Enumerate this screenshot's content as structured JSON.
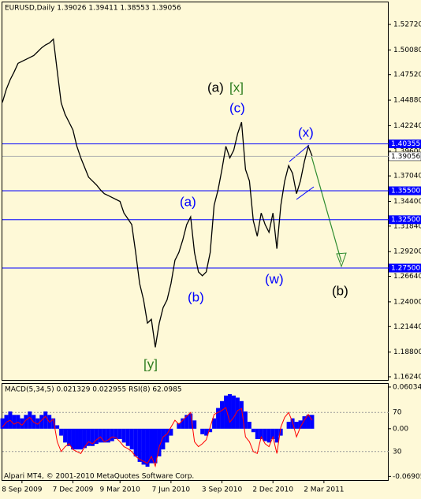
{
  "chart_data": [
    {
      "type": "line",
      "title": "EURUSD,Daily  1.39026 1.39411 1.38553 1.39056",
      "color": "#000000",
      "categories": [
        null,
        null,
        null,
        null,
        null,
        "8 Sep 2009",
        null,
        null,
        null,
        null,
        null,
        null,
        null,
        null,
        null,
        null,
        null,
        null,
        "7 Dec 2009",
        null,
        null,
        null,
        null,
        null,
        null,
        null,
        null,
        null,
        null,
        null,
        "9 Mar 2010",
        null,
        null,
        null,
        null,
        null,
        null,
        null,
        null,
        null,
        null,
        null,
        null,
        "7 Jun 2010",
        null,
        null,
        null,
        null,
        null,
        null,
        null,
        null,
        null,
        null,
        null,
        null,
        "3 Sep 2010",
        null,
        null,
        null,
        null,
        null,
        null,
        null,
        null,
        null,
        null,
        null,
        null,
        "2 Dec 2010",
        null,
        null,
        null,
        null,
        null,
        null,
        null,
        null,
        null,
        null,
        null,
        null,
        "2 Mar 2011"
      ],
      "values": [
        1.4464,
        1.46,
        1.47,
        1.478,
        1.487,
        1.489,
        1.491,
        1.493,
        1.495,
        1.499,
        1.503,
        1.506,
        1.508,
        1.512,
        1.479,
        1.446,
        1.434,
        1.426,
        1.418,
        1.401,
        1.389,
        1.379,
        1.369,
        1.365,
        1.361,
        1.356,
        1.352,
        1.35,
        1.348,
        1.346,
        1.344,
        1.332,
        1.326,
        1.32,
        1.291,
        1.259,
        1.242,
        1.218,
        1.222,
        1.193,
        1.218,
        1.234,
        1.242,
        1.259,
        1.283,
        1.291,
        1.304,
        1.32,
        1.328,
        1.291,
        1.271,
        1.267,
        1.271,
        1.291,
        1.34,
        1.356,
        1.377,
        1.401,
        1.389,
        1.397,
        1.414,
        1.426,
        1.377,
        1.365,
        1.324,
        1.308,
        1.332,
        1.32,
        1.312,
        1.332,
        1.295,
        1.34,
        1.365,
        1.381,
        1.373,
        1.352,
        1.365,
        1.385,
        1.401,
        1.391,
        null,
        null,
        null
      ],
      "ylim": [
        1.1583,
        1.5525
      ],
      "yticks": [
        {
          "value": 1.5272,
          "label": "1.52720"
        },
        {
          "value": 1.5008,
          "label": "1.50080"
        },
        {
          "value": 1.4752,
          "label": "1.47520"
        },
        {
          "value": 1.4488,
          "label": "1.44880"
        },
        {
          "value": 1.4224,
          "label": "1.42240"
        },
        {
          "value": 1.396,
          "label": "1.39600"
        },
        {
          "value": 1.3704,
          "label": "1.37040"
        },
        {
          "value": 1.344,
          "label": "1.34400"
        },
        {
          "value": 1.3184,
          "label": "1.31840"
        },
        {
          "value": 1.292,
          "label": "1.29200"
        },
        {
          "value": 1.2664,
          "label": "1.26640"
        },
        {
          "value": 1.24,
          "label": "1.24000"
        },
        {
          "value": 1.2144,
          "label": "1.21440"
        },
        {
          "value": 1.188,
          "label": "1.18800"
        },
        {
          "value": 1.1624,
          "label": "1.16240"
        }
      ],
      "levels": [
        1.40355,
        {
          "value": 1.355,
          "label": "1.35500"
        },
        {
          "value": 1.325,
          "label": "1.32500"
        },
        {
          "value": 1.275,
          "label": "1.27500"
        }
      ],
      "level_color": "#0000ff",
      "current_price": 1.39056,
      "annotations": [
        "(a)",
        "[x]",
        "(c)",
        "(x)",
        "(a)",
        "(b)",
        "[y]",
        "(w)",
        "(b)"
      ]
    },
    {
      "type": "bar",
      "title": "MACD(5,34,5) 0.021329 0.022955  RSI(8) 62.0985",
      "series": [
        {
          "type": "bar",
          "color": "#0000ff",
          "values": [
            0.015,
            0.02,
            0.025,
            0.02,
            0.02,
            0.015,
            0.02,
            0.025,
            0.02,
            0.015,
            0.02,
            0.025,
            0.02,
            0.015,
            0.005,
            -0.01,
            -0.02,
            -0.025,
            -0.03,
            -0.03,
            -0.03,
            -0.028,
            -0.025,
            -0.025,
            -0.022,
            -0.02,
            -0.02,
            -0.02,
            -0.018,
            -0.015,
            -0.015,
            -0.02,
            -0.025,
            -0.03,
            -0.04,
            -0.048,
            -0.052,
            -0.055,
            -0.05,
            -0.05,
            -0.04,
            -0.03,
            -0.02,
            -0.01,
            0.0,
            0.008,
            0.015,
            0.02,
            0.022,
            0.012,
            0.0,
            -0.008,
            -0.01,
            -0.005,
            0.015,
            0.03,
            0.04,
            0.048,
            0.05,
            0.048,
            0.045,
            0.04,
            0.025,
            0.01,
            -0.005,
            -0.015,
            -0.015,
            -0.018,
            -0.02,
            -0.015,
            -0.02,
            -0.01,
            0.0,
            0.01,
            0.015,
            0.01,
            0.012,
            0.018,
            0.02,
            0.02,
            null,
            null,
            null
          ]
        },
        {
          "type": "line",
          "axis": "y2",
          "color": "#ff0000",
          "values": [
            55,
            60,
            62,
            58,
            60,
            57,
            62,
            65,
            60,
            58,
            62,
            66,
            60,
            63,
            40,
            30,
            35,
            38,
            32,
            30,
            28,
            35,
            40,
            38,
            42,
            45,
            40,
            42,
            45,
            44,
            40,
            35,
            33,
            30,
            25,
            22,
            20,
            18,
            25,
            15,
            35,
            45,
            48,
            55,
            62,
            58,
            62,
            66,
            70,
            40,
            35,
            38,
            42,
            55,
            68,
            70,
            72,
            75,
            60,
            65,
            72,
            74,
            45,
            40,
            30,
            28,
            45,
            38,
            35,
            45,
            28,
            55,
            65,
            70,
            60,
            45,
            55,
            62,
            68,
            62,
            null,
            null,
            null
          ]
        }
      ],
      "ylim": [
        -0.0755,
        0.066
      ],
      "yticks": [
        0.060349,
        {
          "value": 0,
          "label": "0.00"
        },
        -0.06905
      ],
      "y2lim": [
        0,
        100
      ],
      "y2ticks": [
        70,
        30
      ],
      "footer": "Alpari MT4, © 2001-2010 MetaQuotes Software Corp."
    }
  ]
}
